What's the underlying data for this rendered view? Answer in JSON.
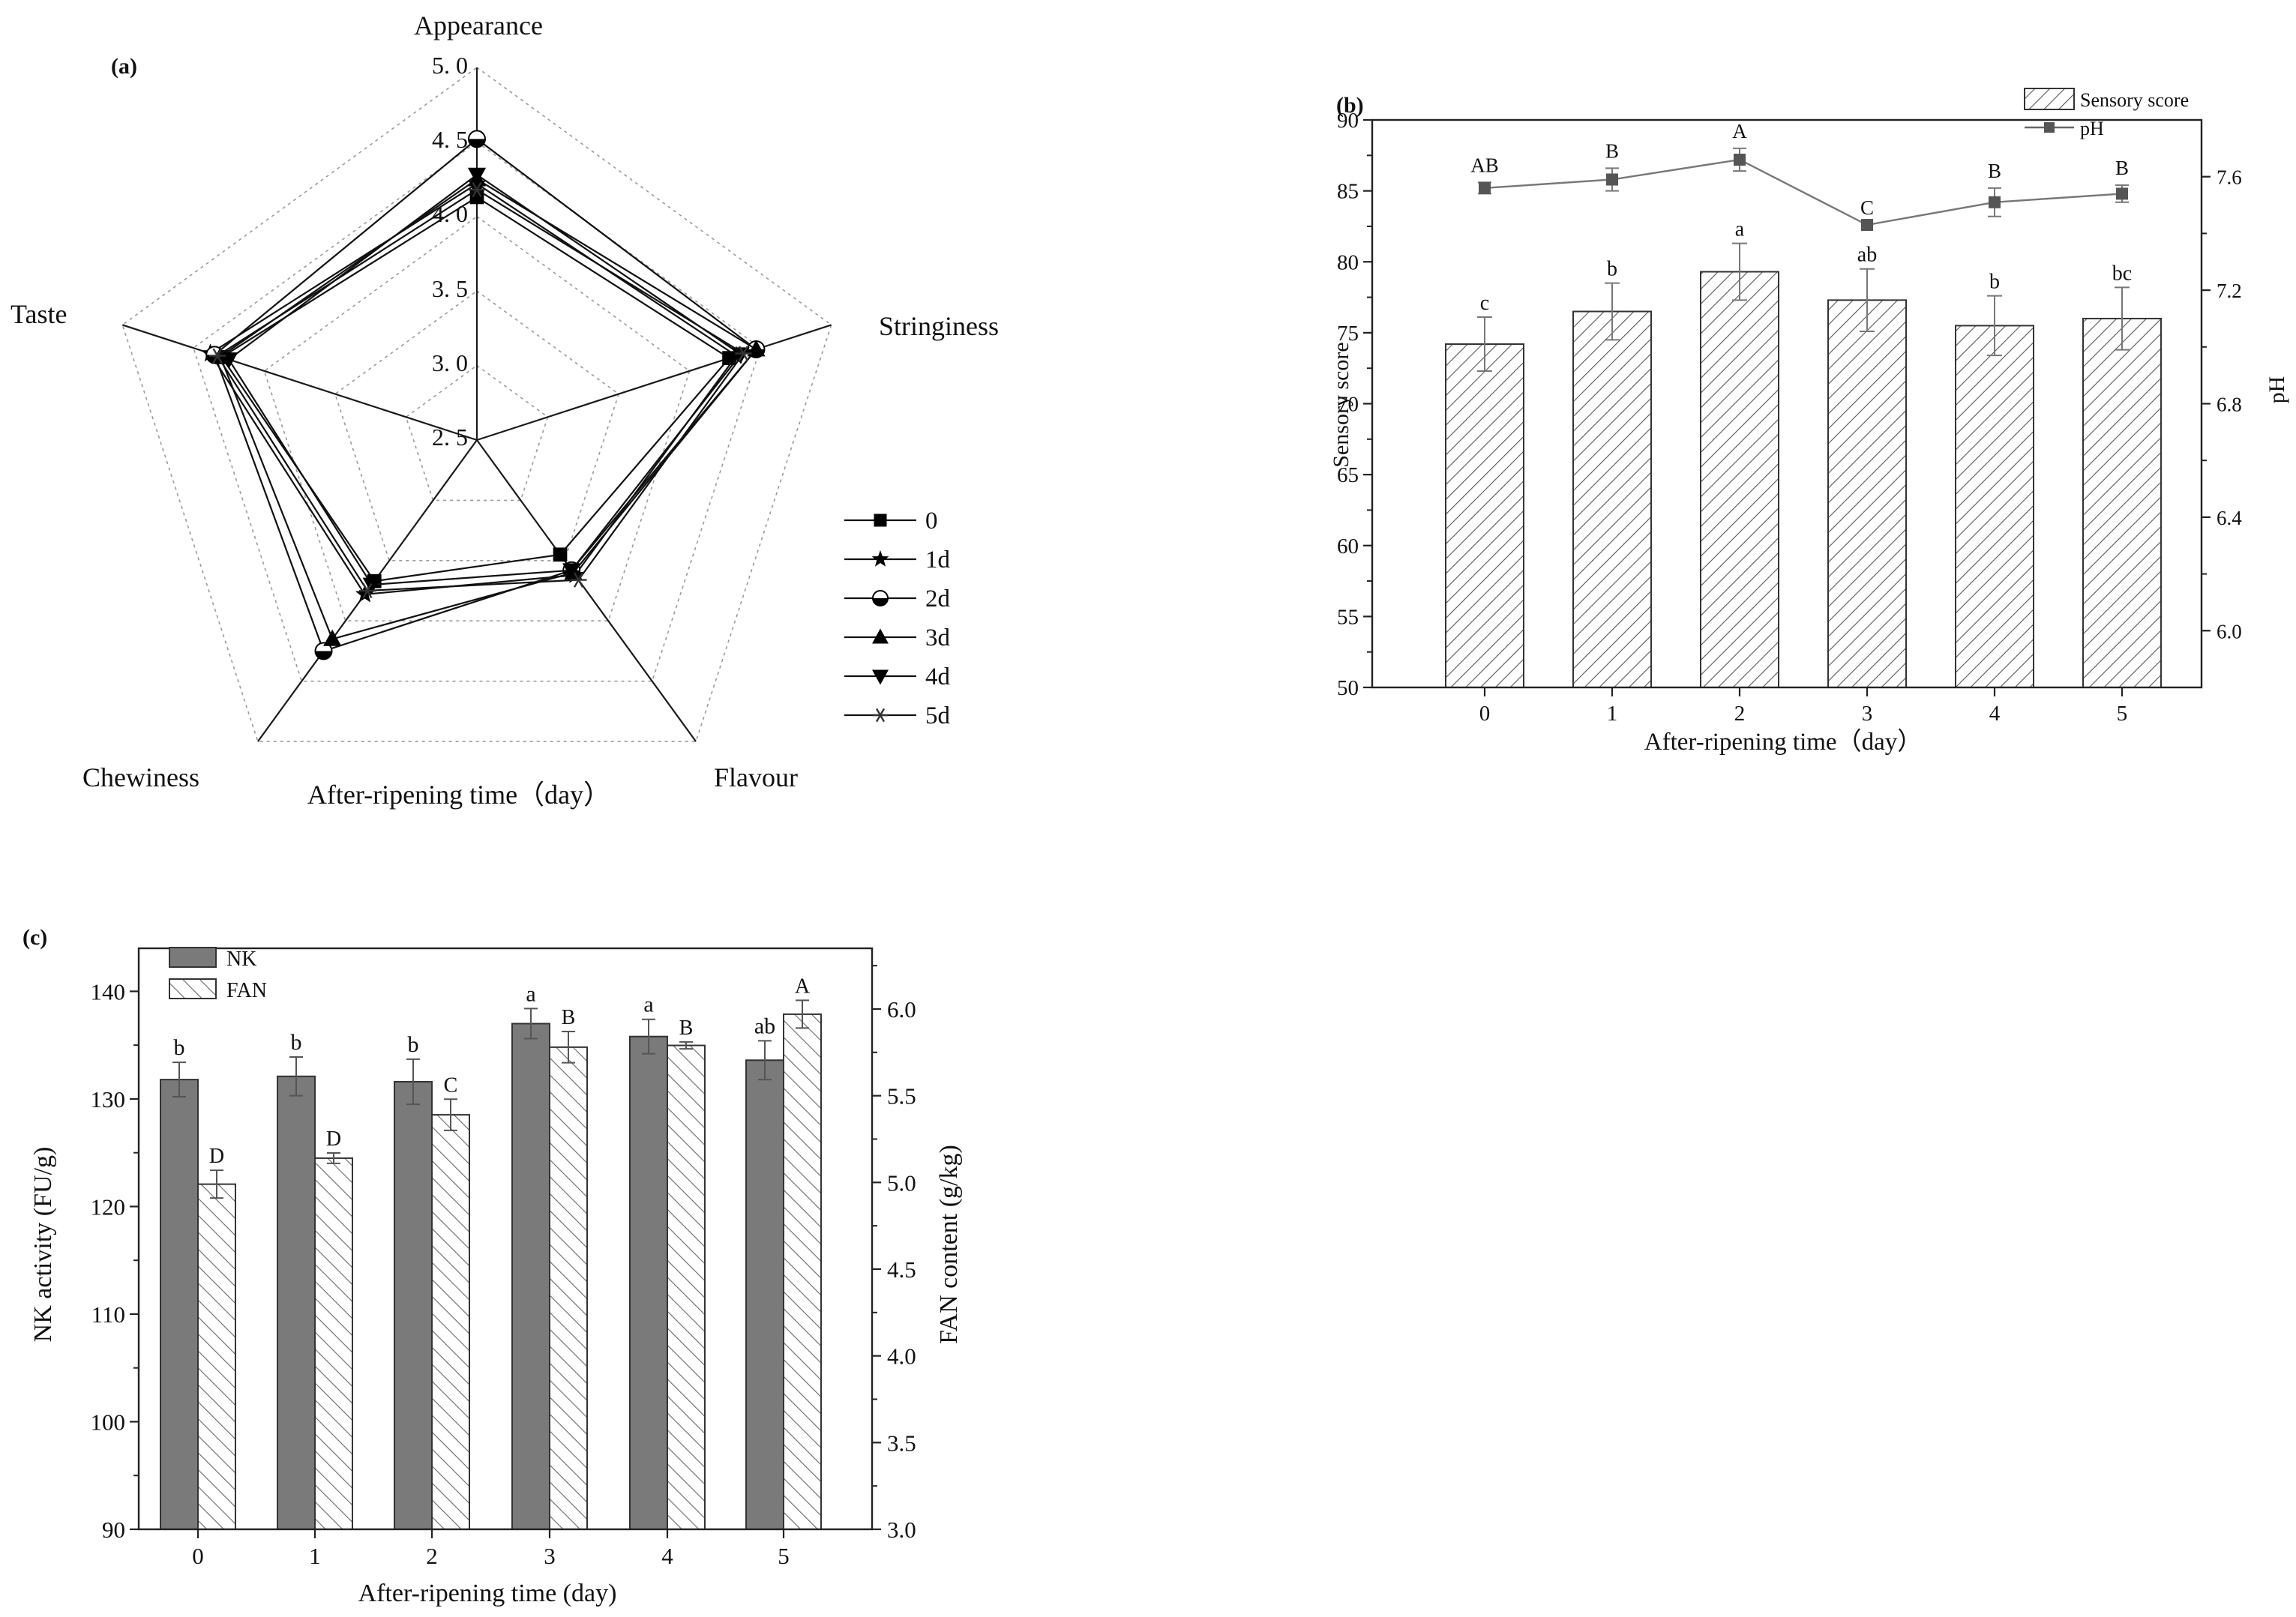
{
  "figure": {
    "panel_labels": [
      "(a)",
      "(b)",
      "(c)"
    ]
  },
  "chart_data": [
    {
      "id": "a",
      "type": "radar",
      "title": "(a)",
      "xlabel": "After-ripening time（day）",
      "axes": [
        "Appearance",
        "Stringiness",
        "Flavour",
        "Chewiness",
        "Taste"
      ],
      "rlim": [
        2.5,
        5.0
      ],
      "ticks": [
        "5. 0",
        "4. 5",
        "4. 0",
        "3. 5",
        "3. 0",
        "2. 5"
      ],
      "tick_values": [
        5.0,
        4.5,
        4.0,
        3.5,
        3.0,
        2.5
      ],
      "series": [
        {
          "name": "0",
          "marker": "square",
          "values": [
            4.13,
            4.28,
            3.45,
            3.67,
            4.3
          ]
        },
        {
          "name": "1d",
          "marker": "star",
          "values": [
            4.22,
            4.33,
            3.62,
            3.78,
            4.38
          ]
        },
        {
          "name": "2d",
          "marker": "half-circle",
          "values": [
            4.52,
            4.47,
            3.58,
            4.25,
            4.35
          ]
        },
        {
          "name": "3d",
          "marker": "triangle-up",
          "values": [
            4.25,
            4.47,
            3.6,
            4.15,
            4.31
          ]
        },
        {
          "name": "4d",
          "marker": "triangle-down",
          "values": [
            4.28,
            4.36,
            3.58,
            3.7,
            4.25
          ]
        },
        {
          "name": "5d",
          "marker": "asterisk",
          "values": [
            4.18,
            4.38,
            3.66,
            3.75,
            4.33
          ]
        }
      ]
    },
    {
      "id": "b",
      "type": "bar+line",
      "title": "(b)",
      "categories": [
        "0",
        "1",
        "2",
        "3",
        "4",
        "5"
      ],
      "xlabel": "After-ripening time（day）",
      "ylabel": "Sensory score",
      "y2label": "pH",
      "ylim": [
        50,
        90
      ],
      "yticks": [
        "50",
        "55",
        "60",
        "65",
        "70",
        "75",
        "80",
        "85",
        "90"
      ],
      "y2lim": [
        5.8,
        7.8
      ],
      "y2ticks": [
        "6.0",
        "6.4",
        "6.8",
        "7.2",
        "7.6"
      ],
      "series": [
        {
          "name": "Sensory score",
          "kind": "bar",
          "values": [
            74.2,
            76.5,
            79.3,
            77.3,
            75.5,
            76.0
          ],
          "errors": [
            1.9,
            2.0,
            2.0,
            2.2,
            2.1,
            2.2
          ],
          "labels": [
            "c",
            "b",
            "a",
            "ab",
            "b",
            "bc"
          ]
        },
        {
          "name": "pH",
          "kind": "line",
          "values": [
            7.56,
            7.59,
            7.66,
            7.43,
            7.51,
            7.54
          ],
          "errors": [
            0.02,
            0.04,
            0.04,
            0.0,
            0.05,
            0.03
          ],
          "labels": [
            "AB",
            "B",
            "A",
            "C",
            "B",
            "B"
          ]
        }
      ]
    },
    {
      "id": "c",
      "type": "bar",
      "title": "(c)",
      "categories": [
        "0",
        "1",
        "2",
        "3",
        "4",
        "5"
      ],
      "xlabel": "After-ripening time (day)",
      "ylabel": "NK activity (FU/g)",
      "y2label": "FAN content (g/kg)",
      "ylim": [
        90,
        144
      ],
      "yticks": [
        "90",
        "100",
        "110",
        "120",
        "130",
        "140"
      ],
      "y2lim": [
        3.0,
        6.35
      ],
      "y2ticks": [
        "3.0",
        "3.5",
        "4.0",
        "4.5",
        "5.0",
        "5.5",
        "6.0"
      ],
      "series": [
        {
          "name": "NK",
          "values": [
            131.8,
            132.1,
            131.6,
            137.0,
            135.8,
            133.6
          ],
          "errors": [
            1.6,
            1.8,
            2.1,
            1.4,
            1.6,
            1.8
          ],
          "labels": [
            "b",
            "b",
            "b",
            "a",
            "a",
            "ab"
          ]
        },
        {
          "name": "FAN",
          "values": [
            4.99,
            5.14,
            5.39,
            5.78,
            5.79,
            5.97
          ],
          "errors": [
            0.08,
            0.03,
            0.09,
            0.09,
            0.02,
            0.08
          ],
          "labels": [
            "D",
            "D",
            "C",
            "B",
            "B",
            "A"
          ]
        }
      ]
    }
  ]
}
